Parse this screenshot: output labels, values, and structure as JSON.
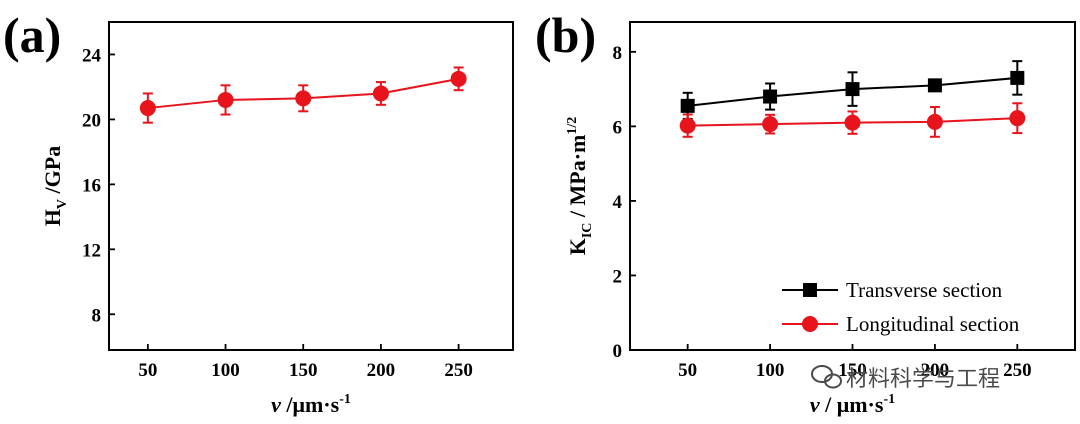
{
  "watermark": "材料科学与工程",
  "chart_data": [
    {
      "panel_label": "(a)",
      "type": "line",
      "x": [
        50,
        100,
        150,
        200,
        250
      ],
      "xlim": [
        25,
        285
      ],
      "ylim": [
        5.8,
        26
      ],
      "xticks": [
        "50",
        "100",
        "150",
        "200",
        "250"
      ],
      "yticks": [
        "8",
        "12",
        "16",
        "20",
        "24"
      ],
      "xlabel": {
        "italic": "v",
        "rest": " /μm·s",
        "sup": "-1"
      },
      "ylabel": {
        "main": "H",
        "sub": "V",
        "rest": " /GPa"
      },
      "series": [
        {
          "color": "#e8141c",
          "marker": "circle",
          "values": [
            20.7,
            21.2,
            21.3,
            21.6,
            22.5
          ],
          "errors": [
            0.9,
            0.9,
            0.8,
            0.7,
            0.7
          ]
        }
      ]
    },
    {
      "panel_label": "(b)",
      "type": "line",
      "x": [
        50,
        100,
        150,
        200,
        250
      ],
      "xlim": [
        15,
        285
      ],
      "ylim": [
        0,
        8.8
      ],
      "xticks": [
        "50",
        "100",
        "150",
        "200",
        "250"
      ],
      "yticks": [
        "0",
        "2",
        "4",
        "6",
        "8"
      ],
      "xlabel": {
        "italic": "v",
        "rest": " / μm·s",
        "sup": "-1"
      },
      "ylabel": {
        "main": "K",
        "sub": "IC",
        "rest": " / MPa·m",
        "sup": "1/2"
      },
      "legend": "bottom-right",
      "series": [
        {
          "name": "Transverse section",
          "color": "#000000",
          "marker": "square",
          "values": [
            6.55,
            6.8,
            7.0,
            7.1,
            7.3
          ],
          "errors": [
            0.35,
            0.35,
            0.45,
            0.15,
            0.45
          ]
        },
        {
          "name": "Longitudinal section",
          "color": "#e8141c",
          "marker": "circle",
          "values": [
            6.02,
            6.06,
            6.1,
            6.12,
            6.22
          ],
          "errors": [
            0.3,
            0.25,
            0.3,
            0.4,
            0.4
          ]
        }
      ]
    }
  ]
}
